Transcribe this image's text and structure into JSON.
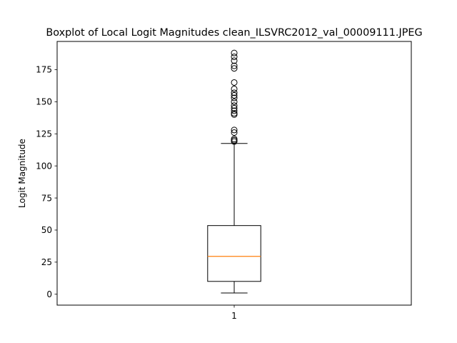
{
  "chart_data": {
    "type": "boxplot",
    "title": "Boxplot of Local Logit Magnitudes clean_ILSVRC2012_val_00009111.JPEG",
    "xlabel": "",
    "ylabel": "Logit Magnitude",
    "categories": [
      "1"
    ],
    "ylim": [
      -8.5,
      197
    ],
    "y_ticks": [
      0,
      25,
      50,
      75,
      100,
      125,
      150,
      175
    ],
    "grid": false,
    "boxes": [
      {
        "category": "1",
        "whisker_low": 1,
        "q1": 10,
        "median": 29.5,
        "q3": 53.5,
        "whisker_high": 117.5,
        "outliers": [
          119,
          120,
          121,
          126,
          128,
          140,
          141,
          143,
          145,
          147,
          150,
          153,
          155,
          157,
          160,
          165,
          176,
          178,
          182,
          185,
          188
        ]
      }
    ],
    "colors": {
      "box": "#000000",
      "median": "#ff7f0e",
      "flier": "#000000"
    }
  }
}
